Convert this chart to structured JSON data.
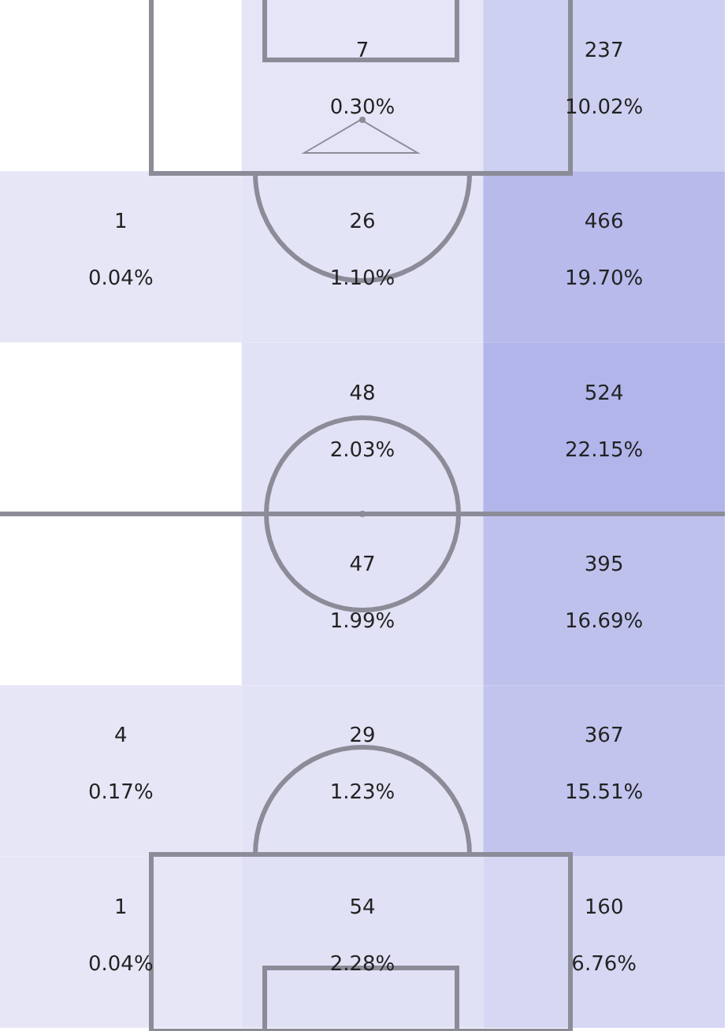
{
  "chart_data": {
    "type": "heatmap",
    "categories": [
      null,
      null,
      null
    ],
    "y_categories": [
      null,
      null,
      null,
      null,
      null,
      null
    ],
    "cells": [
      [
        null,
        7,
        237
      ],
      [
        1,
        26,
        466
      ],
      [
        null,
        48,
        524
      ],
      [
        null,
        47,
        395
      ],
      [
        4,
        29,
        367
      ],
      [
        1,
        54,
        160
      ]
    ],
    "data_labels": true,
    "annotations": [
      "0.30%",
      "10.02%",
      "0.04%",
      "1.10%",
      "19.70%",
      "2.03%",
      "22.15%",
      "1.99%",
      "16.69%",
      "0.17%",
      "1.23%",
      "15.51%",
      "0.04%",
      "2.28%",
      "6.76%"
    ]
  }
}
